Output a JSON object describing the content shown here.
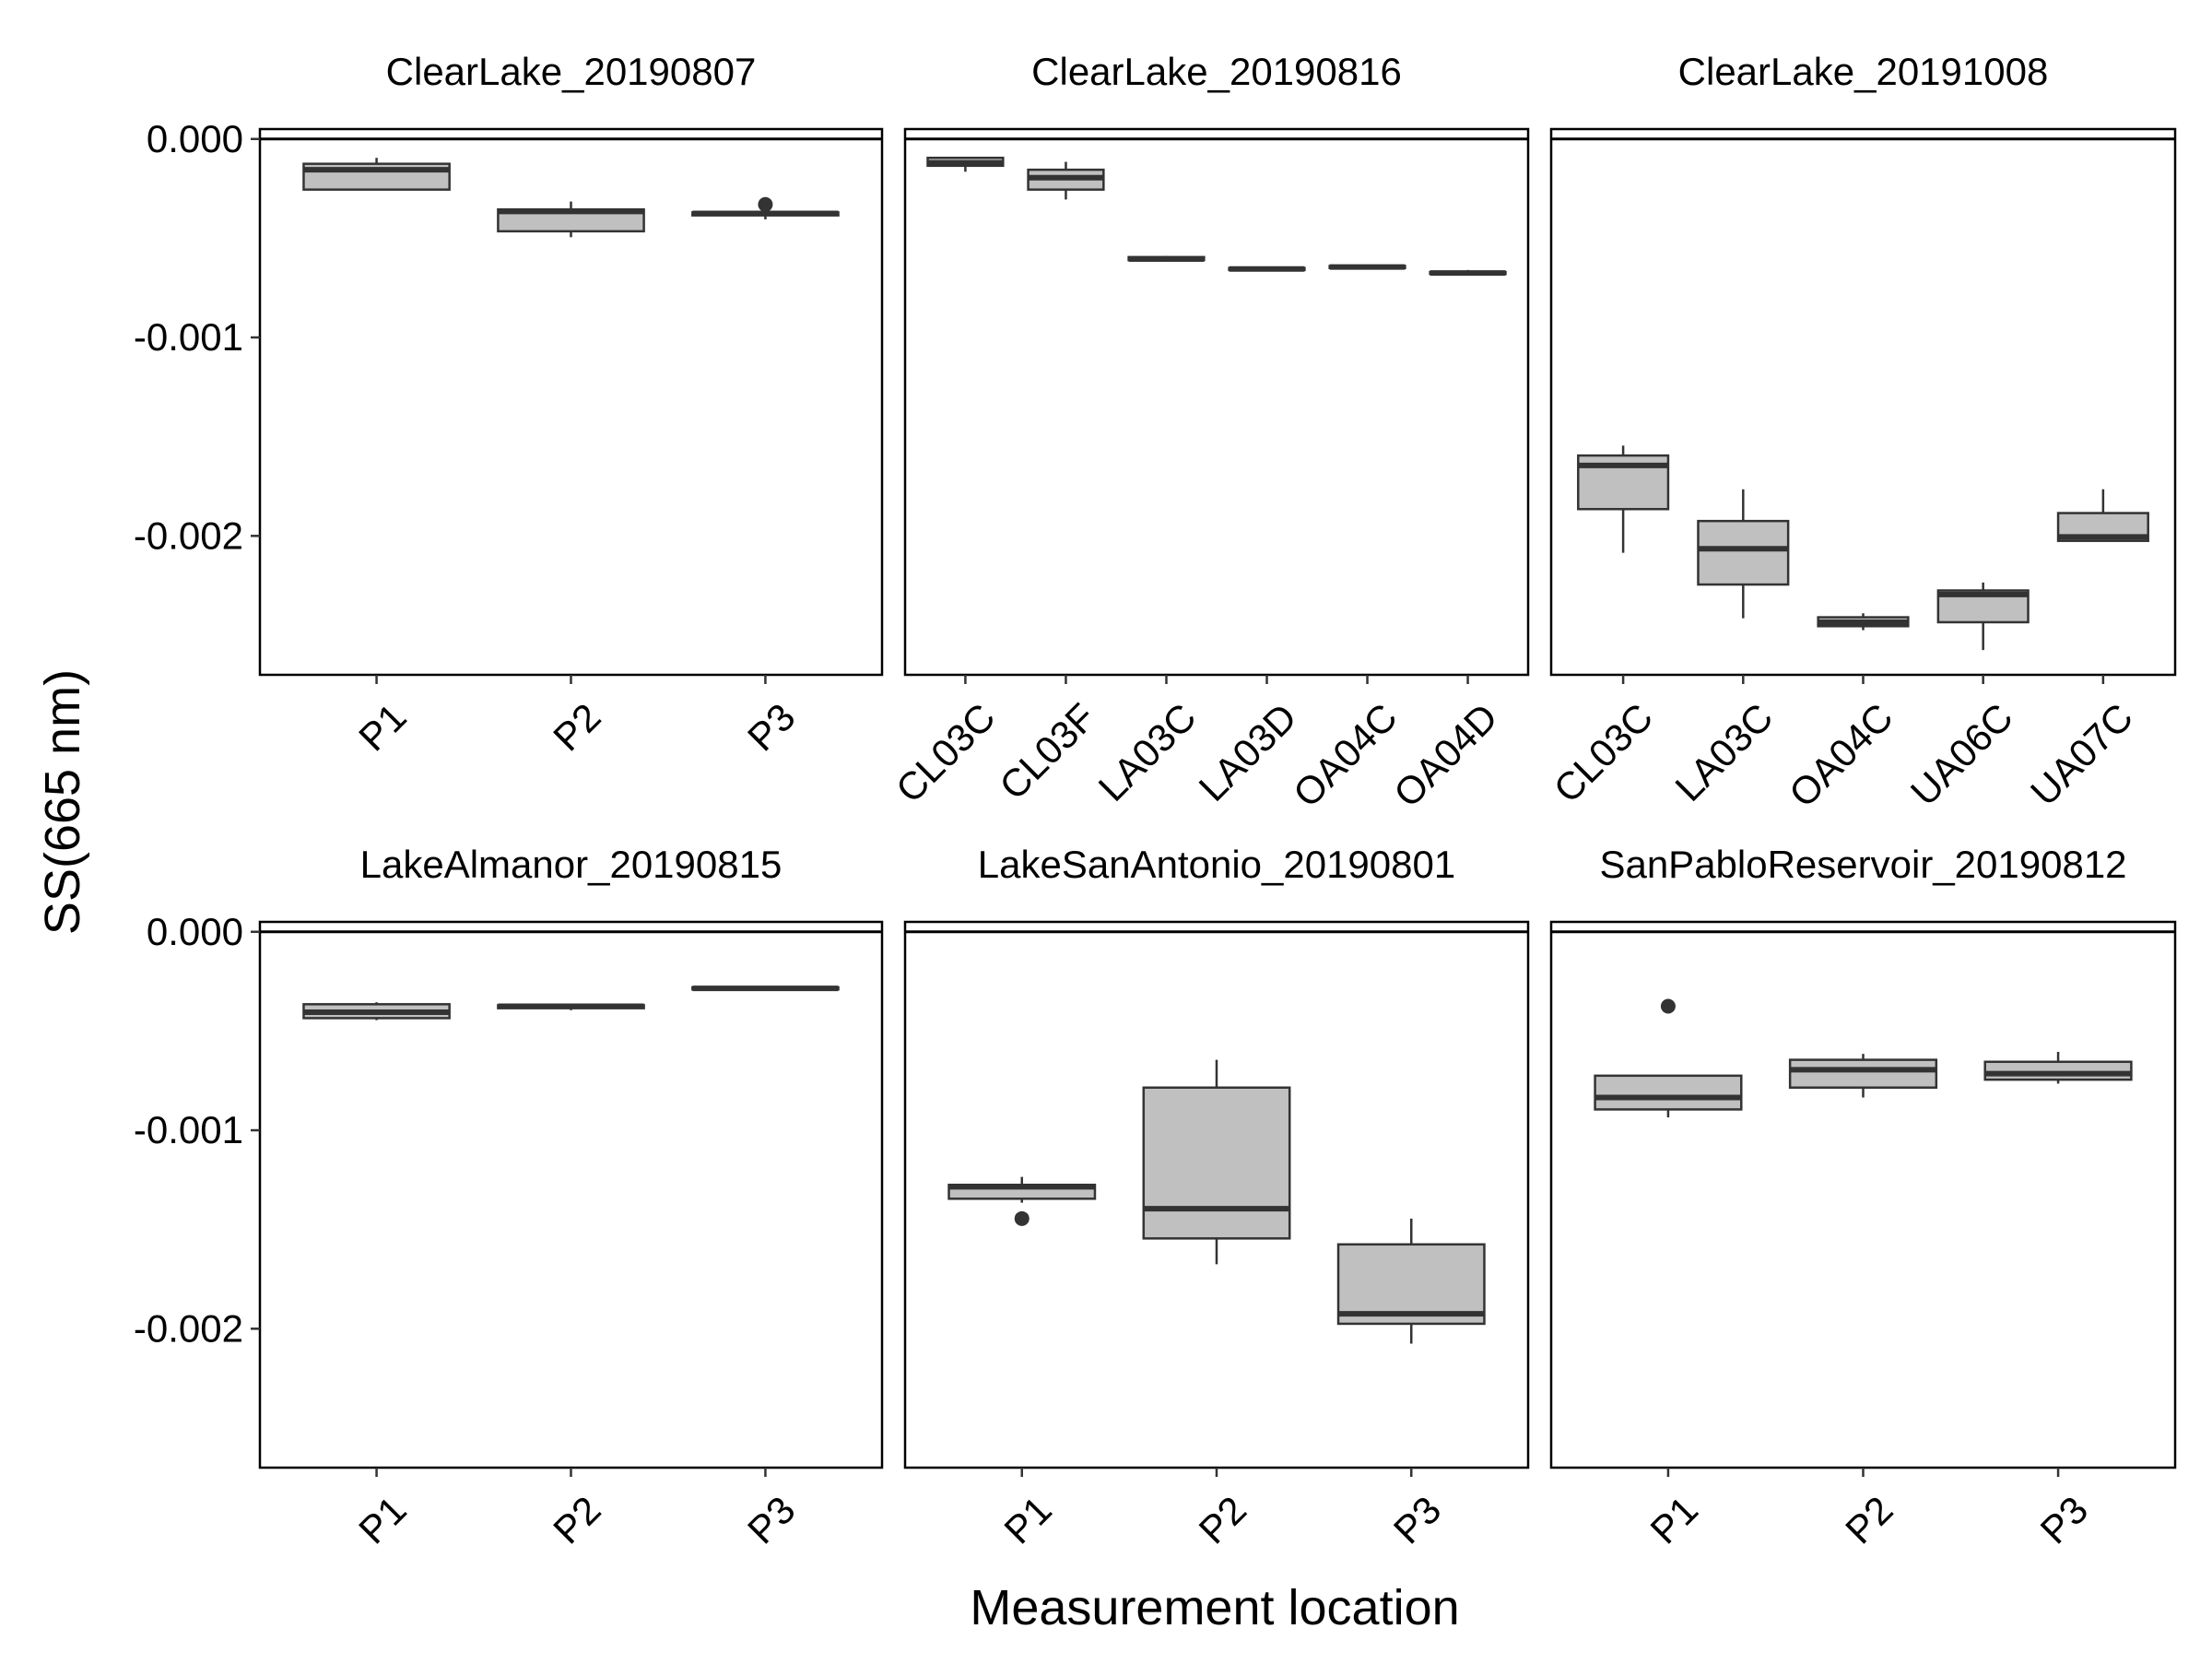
{
  "chart_data": {
    "type": "boxplot",
    "ylabel": "SS(665 nm)",
    "xlabel": "Measurement location",
    "ylim": [
      -0.0027,
      5e-05
    ],
    "yticks": [
      0.0,
      -0.001,
      -0.002
    ],
    "ytick_labels": [
      "0.000",
      "-0.001",
      "-0.002"
    ],
    "reference_line": 0.0,
    "grid": false,
    "box_fill": "#c0c0c0",
    "line_color": "#333333",
    "panels": [
      {
        "title": "ClearLake_20190807",
        "boxes": [
          {
            "category": "P1",
            "min": -0.000255,
            "q1": -0.000255,
            "median": -0.000155,
            "q3": -0.000125,
            "max": -9.5e-05,
            "outliers": []
          },
          {
            "category": "P2",
            "min": -0.000495,
            "q1": -0.000465,
            "median": -0.000365,
            "q3": -0.000355,
            "max": -0.000315,
            "outliers": []
          },
          {
            "category": "P3",
            "min": -0.000405,
            "q1": -0.000385,
            "median": -0.000375,
            "q3": -0.00037,
            "max": -0.000365,
            "outliers": [
              -0.00033
            ]
          }
        ]
      },
      {
        "title": "ClearLake_20190816",
        "boxes": [
          {
            "category": "CL03C",
            "min": -0.000165,
            "q1": -0.000135,
            "median": -0.00012,
            "q3": -9.5e-05,
            "max": -9e-05,
            "outliers": []
          },
          {
            "category": "CL03F",
            "min": -0.000305,
            "q1": -0.000255,
            "median": -0.000195,
            "q3": -0.000155,
            "max": -0.000115,
            "outliers": []
          },
          {
            "category": "LA03C",
            "min": -0.000615,
            "q1": -0.00061,
            "median": -0.000605,
            "q3": -0.000595,
            "max": -0.00059,
            "outliers": []
          },
          {
            "category": "LA03D",
            "min": -0.000665,
            "q1": -0.00066,
            "median": -0.000655,
            "q3": -0.00065,
            "max": -0.000645,
            "outliers": []
          },
          {
            "category": "OA04C",
            "min": -0.000655,
            "q1": -0.00065,
            "median": -0.000645,
            "q3": -0.00064,
            "max": -0.000635,
            "outliers": []
          },
          {
            "category": "OA04D",
            "min": -0.000685,
            "q1": -0.00068,
            "median": -0.000675,
            "q3": -0.00067,
            "max": -0.00066,
            "outliers": []
          }
        ]
      },
      {
        "title": "ClearLake_20191008",
        "boxes": [
          {
            "category": "CL03C",
            "min": -0.002085,
            "q1": -0.001865,
            "median": -0.001645,
            "q3": -0.001595,
            "max": -0.001545,
            "outliers": []
          },
          {
            "category": "LA03C",
            "min": -0.002415,
            "q1": -0.002245,
            "median": -0.002065,
            "q3": -0.001925,
            "max": -0.001765,
            "outliers": []
          },
          {
            "category": "OA04C",
            "min": -0.002475,
            "q1": -0.002455,
            "median": -0.002435,
            "q3": -0.00241,
            "max": -0.00239,
            "outliers": []
          },
          {
            "category": "UA06C",
            "min": -0.002575,
            "q1": -0.002435,
            "median": -0.002295,
            "q3": -0.002275,
            "max": -0.002235,
            "outliers": []
          },
          {
            "category": "UA07C",
            "min": -0.002025,
            "q1": -0.002025,
            "median": -0.002005,
            "q3": -0.001885,
            "max": -0.001765,
            "outliers": []
          }
        ]
      },
      {
        "title": "LakeAlmanor_20190815",
        "boxes": [
          {
            "category": "P1",
            "min": -0.000445,
            "q1": -0.000435,
            "median": -0.000405,
            "q3": -0.000365,
            "max": -0.000355,
            "outliers": []
          },
          {
            "category": "P2",
            "min": -0.000395,
            "q1": -0.000385,
            "median": -0.000375,
            "q3": -0.00037,
            "max": -0.000365,
            "outliers": []
          },
          {
            "category": "P3",
            "min": -0.00029,
            "q1": -0.00029,
            "median": -0.000285,
            "q3": -0.00028,
            "max": -0.00028,
            "outliers": []
          }
        ]
      },
      {
        "title": "LakeSanAntonio_20190801",
        "boxes": [
          {
            "category": "P1",
            "min": -0.001365,
            "q1": -0.001345,
            "median": -0.001285,
            "q3": -0.001275,
            "max": -0.001235,
            "outliers": [
              -0.001445
            ]
          },
          {
            "category": "P2",
            "min": -0.001675,
            "q1": -0.001545,
            "median": -0.001395,
            "q3": -0.000785,
            "max": -0.000645,
            "outliers": []
          },
          {
            "category": "P3",
            "min": -0.002075,
            "q1": -0.001975,
            "median": -0.001925,
            "q3": -0.001575,
            "max": -0.001445,
            "outliers": []
          }
        ]
      },
      {
        "title": "SanPabloReservoir_20190812",
        "boxes": [
          {
            "category": "P1",
            "min": -0.000935,
            "q1": -0.000895,
            "median": -0.000835,
            "q3": -0.000725,
            "max": -0.000725,
            "outliers": [
              -0.000375
            ]
          },
          {
            "category": "P2",
            "min": -0.000835,
            "q1": -0.000785,
            "median": -0.000695,
            "q3": -0.000645,
            "max": -0.000615,
            "outliers": []
          },
          {
            "category": "P3",
            "min": -0.000765,
            "q1": -0.000745,
            "median": -0.000715,
            "q3": -0.000655,
            "max": -0.000605,
            "outliers": []
          }
        ]
      }
    ]
  }
}
